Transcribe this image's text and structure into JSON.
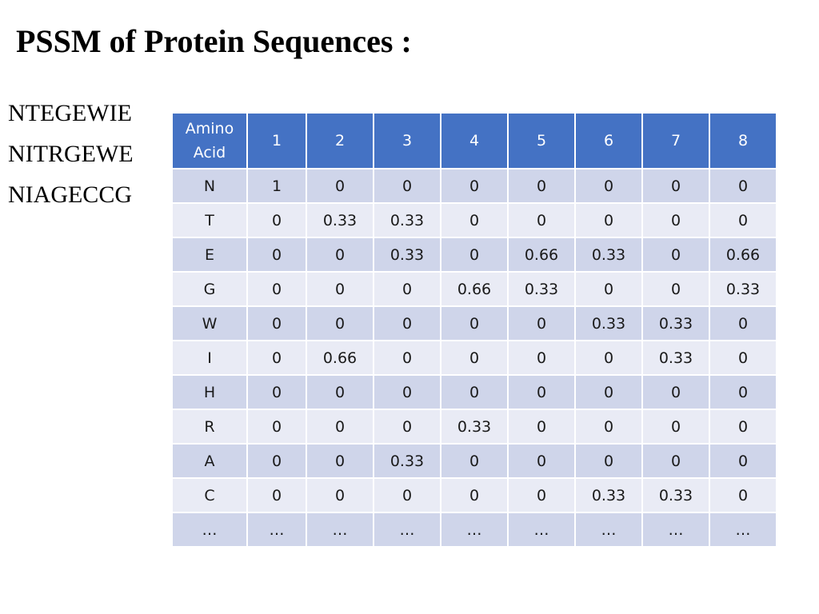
{
  "slide": {
    "title": "PSSM of Protein Sequences :"
  },
  "sequences": [
    "NTEGEWIE",
    "NITRGEWE",
    "NIAGECCG"
  ],
  "table": {
    "header_aa_line1": "Amino",
    "header_aa_line2": "Acid",
    "positions": [
      "1",
      "2",
      "3",
      "4",
      "5",
      "6",
      "7",
      "8"
    ],
    "rows": [
      {
        "aa": "N",
        "values": [
          "1",
          "0",
          "0",
          "0",
          "0",
          "0",
          "0",
          "0"
        ]
      },
      {
        "aa": "T",
        "values": [
          "0",
          "0.33",
          "0.33",
          "0",
          "0",
          "0",
          "0",
          "0"
        ]
      },
      {
        "aa": "E",
        "values": [
          "0",
          "0",
          "0.33",
          "0",
          "0.66",
          "0.33",
          "0",
          "0.66"
        ]
      },
      {
        "aa": "G",
        "values": [
          "0",
          "0",
          "0",
          "0.66",
          "0.33",
          "0",
          "0",
          "0.33"
        ]
      },
      {
        "aa": "W",
        "values": [
          "0",
          "0",
          "0",
          "0",
          "0",
          "0.33",
          "0.33",
          "0"
        ]
      },
      {
        "aa": "I",
        "values": [
          "0",
          "0.66",
          "0",
          "0",
          "0",
          "0",
          "0.33",
          "0"
        ]
      },
      {
        "aa": "H",
        "values": [
          "0",
          "0",
          "0",
          "0",
          "0",
          "0",
          "0",
          "0"
        ]
      },
      {
        "aa": "R",
        "values": [
          "0",
          "0",
          "0",
          "0.33",
          "0",
          "0",
          "0",
          "0"
        ]
      },
      {
        "aa": "A",
        "values": [
          "0",
          "0",
          "0.33",
          "0",
          "0",
          "0",
          "0",
          "0"
        ]
      },
      {
        "aa": "C",
        "values": [
          "0",
          "0",
          "0",
          "0",
          "0",
          "0.33",
          "0.33",
          "0"
        ]
      },
      {
        "aa": "…",
        "values": [
          "…",
          "…",
          "…",
          "…",
          "…",
          "…",
          "…",
          "…"
        ]
      }
    ]
  },
  "colors": {
    "header_bg": "#4472c4",
    "row_odd_bg": "#cfd5ea",
    "row_even_bg": "#e9ebf5"
  }
}
